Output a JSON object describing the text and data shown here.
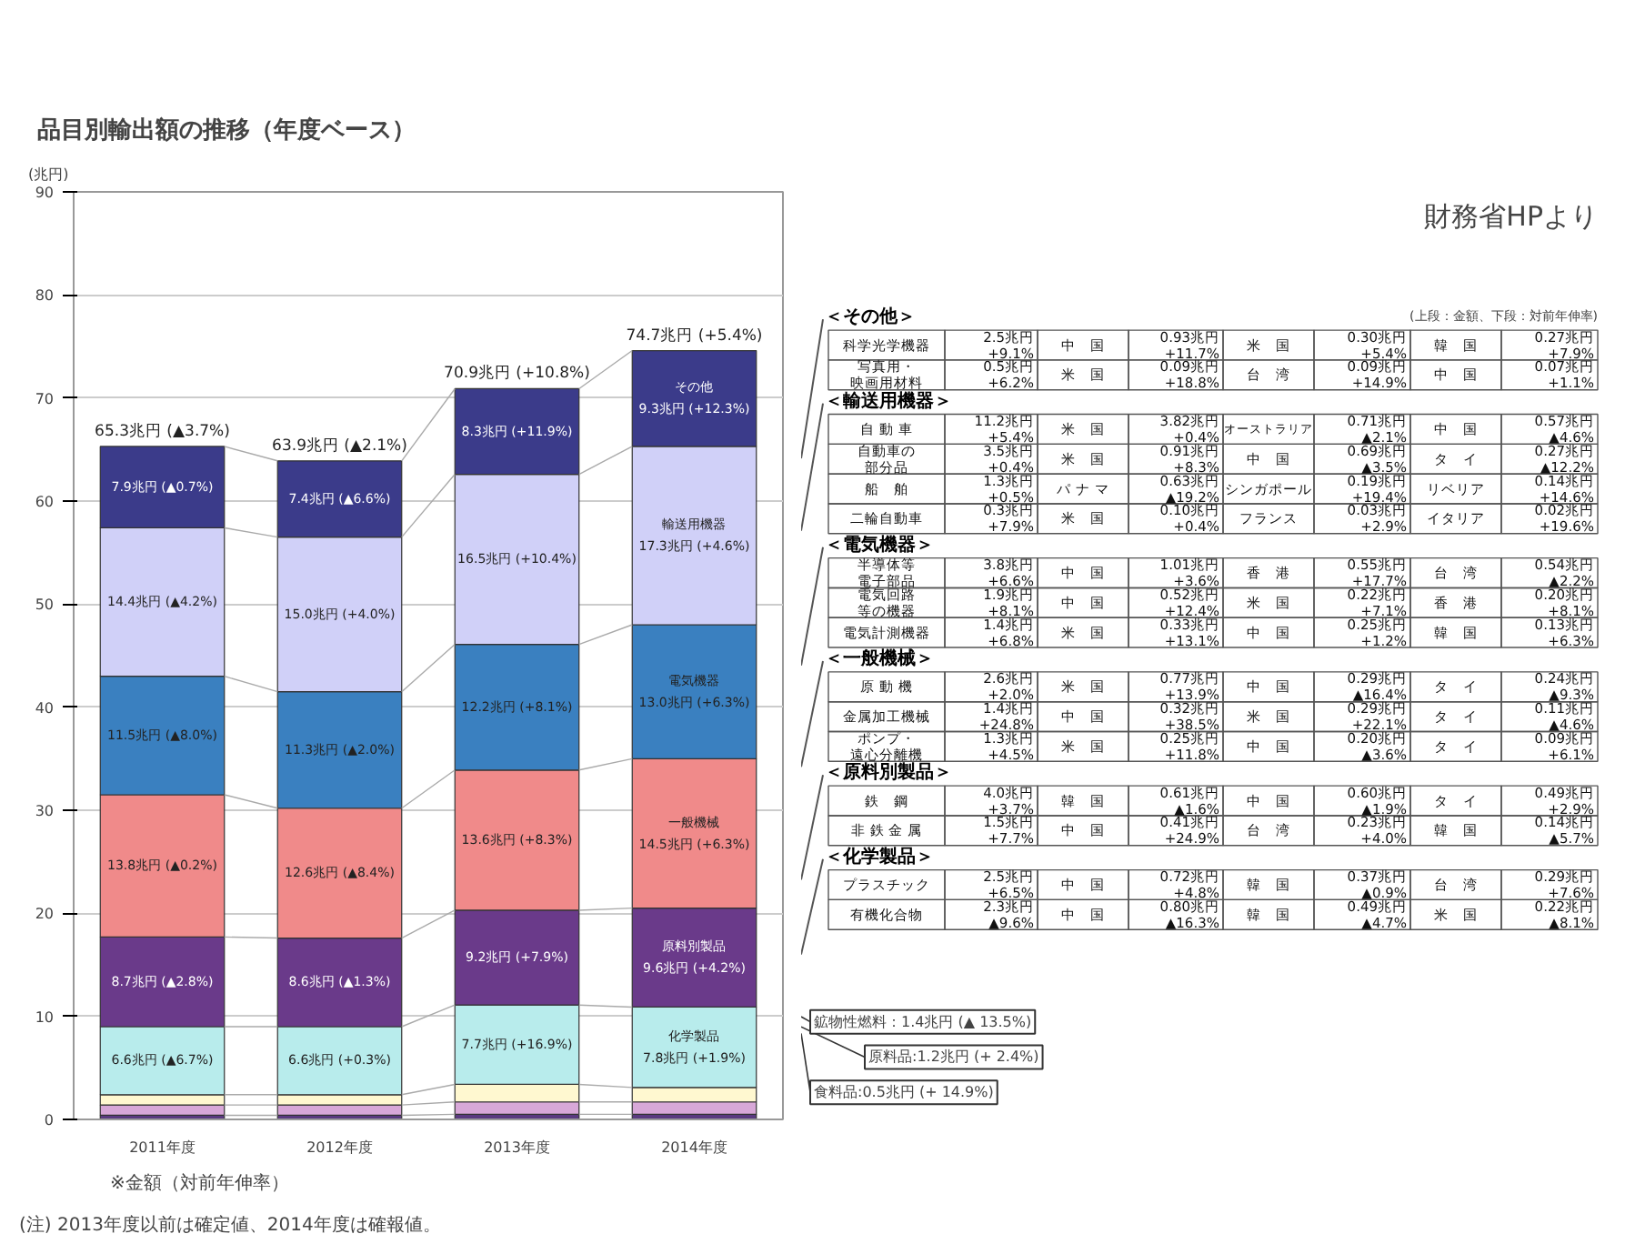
{
  "chart_data": [
    {
      "type": "bar",
      "stacked": true,
      "title": "品目別輸出額の推移（年度ベース）",
      "ylabel": "(兆円)",
      "categories": [
        "2011年度",
        "2012年度",
        "2013年度",
        "2014年度"
      ],
      "ylim": [
        0,
        90
      ],
      "yticks": [
        0,
        10,
        20,
        30,
        40,
        50,
        60,
        70,
        80,
        90
      ],
      "grid": "y",
      "series": [
        {
          "color": "#5a3a80",
          "values": [
            0.4,
            0.4,
            0.5,
            0.5
          ]
        },
        {
          "color": "#d8a8d8",
          "values": [
            1.0,
            1.0,
            1.2,
            1.2
          ]
        },
        {
          "color": "#fff8d0",
          "values": [
            1.0,
            1.0,
            1.7,
            1.4
          ]
        },
        {
          "name": "化学製品",
          "color": "#b8ecec",
          "values": [
            6.6,
            6.6,
            7.7,
            7.8
          ],
          "value_labels": [
            "6.6兆円 (▲6.7%)",
            "6.6兆円 (+0.3%)",
            "7.7兆円 (+16.9%)",
            "7.8兆円 (+1.9%)"
          ]
        },
        {
          "name": "原料別製品",
          "color": "#6a3a8a",
          "values": [
            8.7,
            8.6,
            9.2,
            9.6
          ],
          "value_labels": [
            "8.7兆円 (▲2.8%)",
            "8.6兆円 (▲1.3%)",
            "9.2兆円 (+7.9%)",
            "9.6兆円 (+4.2%)"
          ]
        },
        {
          "name": "一般機械",
          "color": "#f08a8a",
          "values": [
            13.8,
            12.6,
            13.6,
            14.5
          ],
          "value_labels": [
            "13.8兆円 (▲0.2%)",
            "12.6兆円 (▲8.4%)",
            "13.6兆円 (+8.3%)",
            "14.5兆円 (+6.3%)"
          ]
        },
        {
          "name": "電気機器",
          "color": "#3a80c0",
          "values": [
            11.5,
            11.3,
            12.2,
            13.0
          ],
          "value_labels": [
            "11.5兆円 (▲8.0%)",
            "11.3兆円 (▲2.0%)",
            "12.2兆円 (+8.1%)",
            "13.0兆円 (+6.3%)"
          ]
        },
        {
          "name": "輸送用機器",
          "color": "#d0d0f8",
          "values": [
            14.4,
            15.0,
            16.5,
            17.3
          ],
          "value_labels": [
            "14.4兆円 (▲4.2%)",
            "15.0兆円 (+4.0%)",
            "16.5兆円 (+10.4%)",
            "17.3兆円 (+4.6%)"
          ]
        },
        {
          "name": "その他",
          "color": "#3b3b8a",
          "values": [
            7.9,
            7.4,
            8.3,
            9.3
          ],
          "value_labels": [
            "7.9兆円 (▲0.7%)",
            "7.4兆円 (▲6.6%)",
            "8.3兆円 (+11.9%)",
            "9.3兆円 (+12.3%)"
          ]
        }
      ],
      "totals": [
        "65.3兆円 (▲3.7%)",
        "63.9兆円 (▲2.1%)",
        "70.9兆円 (+10.8%)",
        "74.7兆円 (+5.4%)"
      ],
      "annotations": [
        "※金額（対前年伸率）",
        "(注) 2013年度以前は確定値、2014年度は確報値。",
        "鉱物性燃料：1.4兆円 (▲ 13.5%)",
        "原料品:1.2兆円 (+ 2.4%)",
        "食料品:0.5兆円 (+ 14.9%)"
      ]
    },
    {
      "type": "other",
      "annotations": [
        "財務省HPより",
        "(上段：金額、下段：対前年伸率)",
        "＜その他＞",
        "科学光学機器",
        "2.5兆円\n+9.1%",
        "中　国",
        "0.93兆円\n+11.7%",
        "米　国",
        "0.30兆円\n+5.4%",
        "韓　国",
        "0.27兆円\n+7.9%",
        "写真用・映画用材料",
        "0.5兆円\n+6.2%",
        "米　国",
        "0.09兆円\n+18.8%",
        "台　湾",
        "0.09兆円\n+14.9%",
        "中　国",
        "0.07兆円\n+1.1%",
        "＜輸送用機器＞",
        "自 動 車",
        "11.2兆円\n+5.4%",
        "米　国",
        "3.82兆円\n+0.4%",
        "オーストラリア",
        "0.71兆円\n▲2.1%",
        "中　国",
        "0.57兆円\n▲4.6%",
        "自動車の部分品",
        "3.5兆円\n+0.4%",
        "米　国",
        "0.91兆円\n+8.3%",
        "中　国",
        "0.69兆円\n▲3.5%",
        "タ　イ",
        "0.27兆円\n▲12.2%",
        "船　舶",
        "1.3兆円\n+0.5%",
        "パ ナ マ",
        "0.63兆円\n▲19.2%",
        "シンガポール",
        "0.19兆円\n+19.4%",
        "リベリア",
        "0.14兆円\n+14.6%",
        "二輪自動車",
        "0.3兆円\n+7.9%",
        "米　国",
        "0.10兆円\n+0.4%",
        "フランス",
        "0.03兆円\n+2.9%",
        "イタリア",
        "0.02兆円\n+19.6%",
        "＜電気機器＞",
        "半導体等電子部品",
        "3.8兆円\n+6.6%",
        "中　国",
        "1.01兆円\n+3.6%",
        "香　港",
        "0.55兆円\n+17.7%",
        "台　湾",
        "0.54兆円\n▲2.2%",
        "電気回路等の機器",
        "1.9兆円\n+8.1%",
        "中　国",
        "0.52兆円\n+12.4%",
        "米　国",
        "0.22兆円\n+7.1%",
        "香　港",
        "0.20兆円\n+8.1%",
        "電気計測機器",
        "1.4兆円\n+6.8%",
        "米　国",
        "0.33兆円\n+13.1%",
        "中　国",
        "0.25兆円\n+1.2%",
        "韓　国",
        "0.13兆円\n+6.3%",
        "＜一般機械＞",
        "原 動 機",
        "2.6兆円\n+2.0%",
        "米　国",
        "0.77兆円\n+13.9%",
        "中　国",
        "0.29兆円\n▲16.4%",
        "タ　イ",
        "0.24兆円\n▲9.3%",
        "金属加工機械",
        "1.4兆円\n+24.8%",
        "中　国",
        "0.32兆円\n+38.5%",
        "米　国",
        "0.29兆円\n+22.1%",
        "タ　イ",
        "0.11兆円\n▲4.6%",
        "ポンプ・遠心分離機",
        "1.3兆円\n+4.5%",
        "米　国",
        "0.25兆円\n+11.8%",
        "中　国",
        "0.20兆円\n▲3.6%",
        "タ　イ",
        "0.09兆円\n+6.1%",
        "＜原料別製品＞",
        "鉄　鋼",
        "4.0兆円\n+3.7%",
        "韓　国",
        "0.61兆円\n▲1.6%",
        "中　国",
        "0.60兆円\n▲1.9%",
        "タ　イ",
        "0.49兆円\n+2.9%",
        "非 鉄 金 属",
        "1.5兆円\n+7.7%",
        "中　国",
        "0.41兆円\n+24.9%",
        "台　湾",
        "0.23兆円\n+4.0%",
        "韓　国",
        "0.14兆円\n▲5.7%",
        "＜化学製品＞",
        "プラスチック",
        "2.5兆円\n+6.5%",
        "中　国",
        "0.72兆円\n+4.8%",
        "韓　国",
        "0.37兆円\n▲0.9%",
        "台　湾",
        "0.29兆円\n+7.6%",
        "有機化合物",
        "2.3兆円\n▲9.6%",
        "中　国",
        "0.80兆円\n▲16.3%",
        "韓　国",
        "0.49兆円\n▲4.7%",
        "米　国",
        "0.22兆円\n▲8.1%"
      ]
    }
  ]
}
